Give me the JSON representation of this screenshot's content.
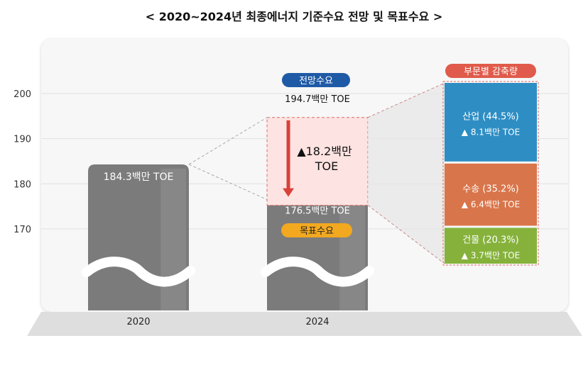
{
  "title": "< 2020~2024년 최종에너지 기준수요 전망 및 목표수요 >",
  "chart_data": {
    "type": "bar",
    "categories": [
      "2020",
      "2024"
    ],
    "values": [
      184.3,
      176.5
    ],
    "y_ticks": [
      170,
      180,
      190,
      200
    ],
    "ylim": [
      165,
      205
    ],
    "grid": true,
    "bar_labels": [
      "184.3백만 TOE",
      "176.5백만 TOE"
    ],
    "projection": {
      "badge": "전망수요",
      "value": 194.7,
      "label": "194.7백만 TOE",
      "reduction_label": "▲18.2백만 TOE",
      "reduction_line1": "▲18.2백만",
      "reduction_line2": "TOE"
    },
    "target_badge": "목표수요",
    "breakdown": {
      "title": "부문별 감축량",
      "sectors": [
        {
          "name": "산업 (44.5%)",
          "share": 44.5,
          "amount": "▲ 8.1백만 TOE",
          "color": "#2e8ec4"
        },
        {
          "name": "수송 (35.2%)",
          "share": 35.2,
          "amount": "▲ 6.4백만 TOE",
          "color": "#d9754a"
        },
        {
          "name": "건물 (20.3%)",
          "share": 20.3,
          "amount": "▲ 3.7백만 TOE",
          "color": "#86b23c"
        }
      ]
    },
    "colors": {
      "bar": "#7b7b7b",
      "bar_light": "#929292",
      "projection_badge": "#1f5aa6",
      "target_badge": "#f2a81f",
      "breakdown_badge": "#e05b4b",
      "arrow": "#d9413a"
    }
  }
}
